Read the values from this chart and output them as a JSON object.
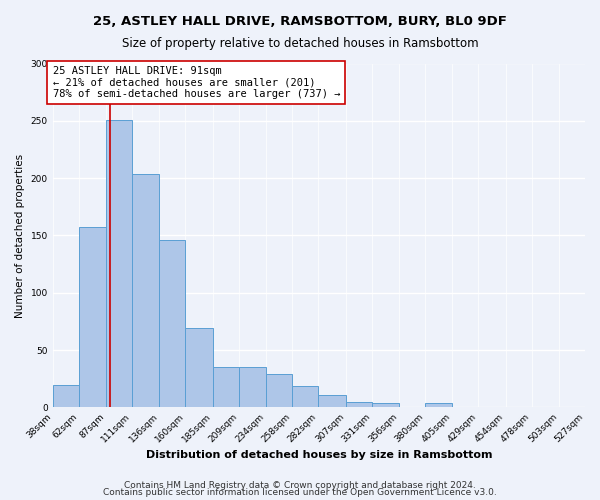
{
  "title": "25, ASTLEY HALL DRIVE, RAMSBOTTOM, BURY, BL0 9DF",
  "subtitle": "Size of property relative to detached houses in Ramsbottom",
  "xlabel": "Distribution of detached houses by size in Ramsbottom",
  "ylabel": "Number of detached properties",
  "bar_edges": [
    38,
    62,
    87,
    111,
    136,
    160,
    185,
    209,
    234,
    258,
    282,
    307,
    331,
    356,
    380,
    405,
    429,
    454,
    478,
    503,
    527
  ],
  "bar_heights": [
    20,
    157,
    251,
    204,
    146,
    69,
    35,
    35,
    29,
    19,
    11,
    5,
    4,
    0,
    4,
    0,
    0,
    0,
    0,
    0
  ],
  "bar_color": "#aec6e8",
  "bar_edge_color": "#5a9fd4",
  "vline_x": 91,
  "vline_color": "#cc0000",
  "annotation_line1": "25 ASTLEY HALL DRIVE: 91sqm",
  "annotation_line2": "← 21% of detached houses are smaller (201)",
  "annotation_line3": "78% of semi-detached houses are larger (737) →",
  "annotation_box_color": "#ffffff",
  "annotation_box_edge_color": "#cc0000",
  "ylim": [
    0,
    300
  ],
  "tick_labels": [
    "38sqm",
    "62sqm",
    "87sqm",
    "111sqm",
    "136sqm",
    "160sqm",
    "185sqm",
    "209sqm",
    "234sqm",
    "258sqm",
    "282sqm",
    "307sqm",
    "331sqm",
    "356sqm",
    "380sqm",
    "405sqm",
    "429sqm",
    "454sqm",
    "478sqm",
    "503sqm",
    "527sqm"
  ],
  "footnote1": "Contains HM Land Registry data © Crown copyright and database right 2024.",
  "footnote2": "Contains public sector information licensed under the Open Government Licence v3.0.",
  "bg_color": "#eef2fa",
  "grid_color": "#ffffff",
  "title_fontsize": 9.5,
  "subtitle_fontsize": 8.5,
  "xlabel_fontsize": 8,
  "ylabel_fontsize": 7.5,
  "tick_fontsize": 6.5,
  "annotation_fontsize": 7.5,
  "footnote_fontsize": 6.5
}
